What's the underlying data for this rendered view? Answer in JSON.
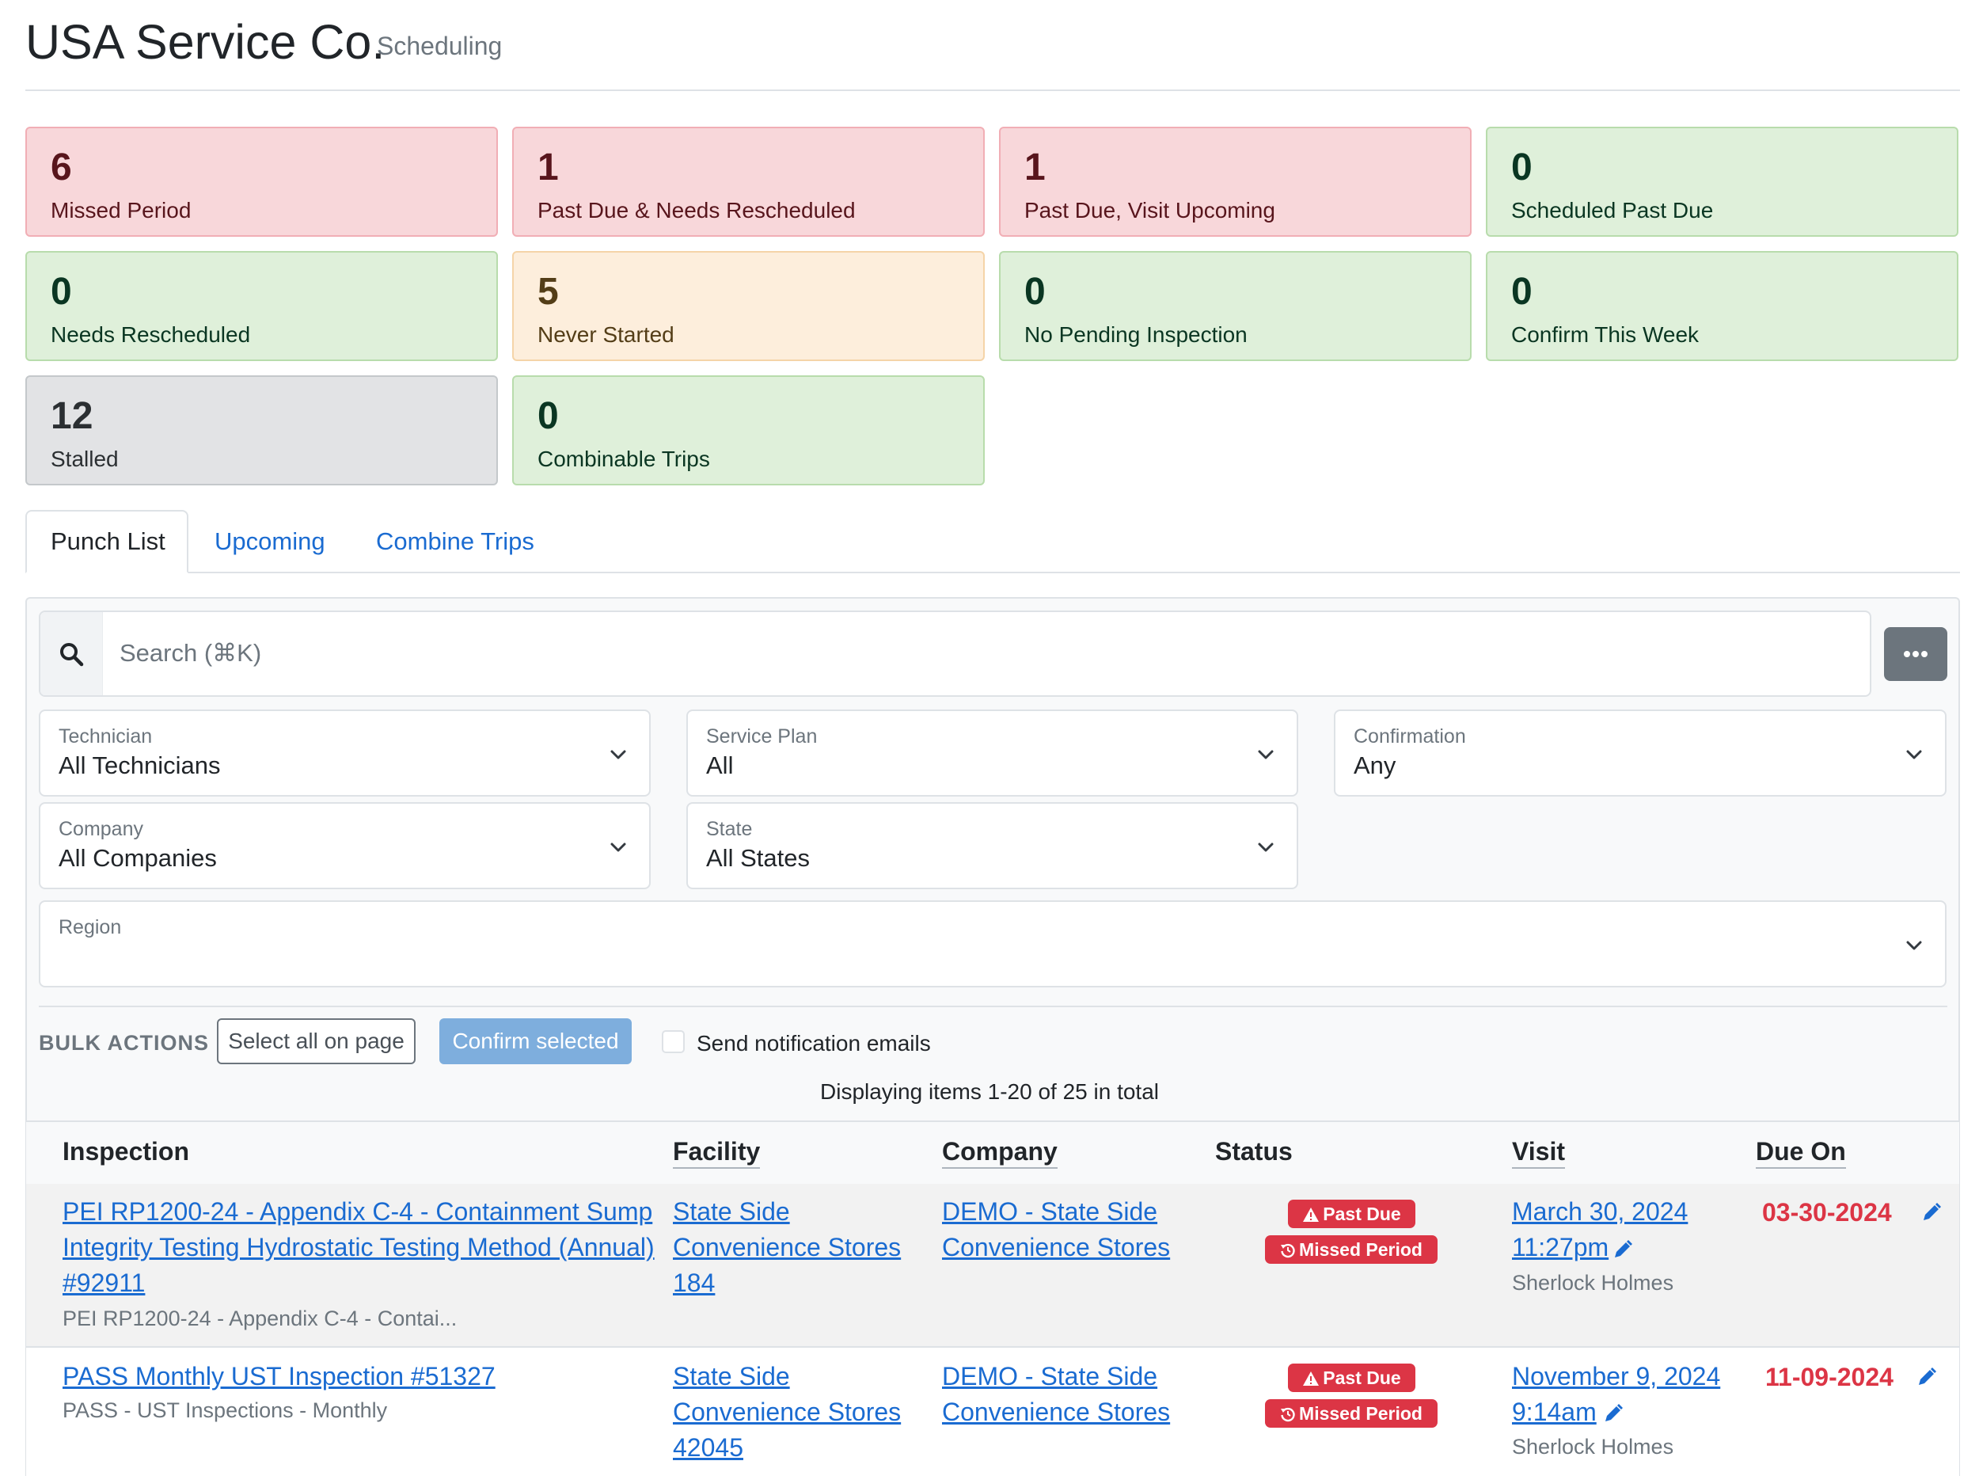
{
  "header": {
    "title": "USA Service Co.",
    "subtitle": "Scheduling"
  },
  "stats": [
    {
      "value": "6",
      "label": "Missed Period",
      "tone": "red"
    },
    {
      "value": "1",
      "label": "Past Due & Needs Rescheduled",
      "tone": "red"
    },
    {
      "value": "1",
      "label": "Past Due, Visit Upcoming",
      "tone": "red"
    },
    {
      "value": "0",
      "label": "Scheduled Past Due",
      "tone": "green"
    },
    {
      "value": "0",
      "label": "Needs Rescheduled",
      "tone": "green"
    },
    {
      "value": "5",
      "label": "Never Started",
      "tone": "orange"
    },
    {
      "value": "0",
      "label": "No Pending Inspection",
      "tone": "green"
    },
    {
      "value": "0",
      "label": "Confirm This Week",
      "tone": "green"
    },
    {
      "value": "12",
      "label": "Stalled",
      "tone": "gray"
    },
    {
      "value": "0",
      "label": "Combinable Trips",
      "tone": "green"
    }
  ],
  "tabs": [
    {
      "label": "Punch List",
      "active": true
    },
    {
      "label": "Upcoming",
      "active": false
    },
    {
      "label": "Combine Trips",
      "active": false
    }
  ],
  "search": {
    "placeholder": "Search (⌘K)",
    "icon": "search-icon",
    "more_icon": "ellipsis-icon"
  },
  "filters": {
    "technician": {
      "label": "Technician",
      "value": "All Technicians"
    },
    "service_plan": {
      "label": "Service Plan",
      "value": "All"
    },
    "confirmation": {
      "label": "Confirmation",
      "value": "Any"
    },
    "company": {
      "label": "Company",
      "value": "All Companies"
    },
    "state": {
      "label": "State",
      "value": "All States"
    },
    "region": {
      "label": "Region",
      "value": ""
    }
  },
  "bulk": {
    "label": "BULK ACTIONS",
    "select_all": "Select all on page",
    "confirm_selected": "Confirm selected",
    "notify_label": "Send notification emails",
    "notify_checked": false
  },
  "pagination": {
    "summary": "Displaying items 1-20 of 25 in total"
  },
  "table": {
    "columns": [
      "Inspection",
      "Facility",
      "Company",
      "Status",
      "Visit",
      "Due On"
    ],
    "rows": [
      {
        "inspection_lines": [
          "PEI RP1200-24 - Appendix C-4 - Containment Sump",
          "Integrity Testing Hydrostatic Testing Method (Annual)",
          "#92911"
        ],
        "inspection_sub": "PEI RP1200-24 - Appendix C-4 - Contai...",
        "facility_lines": [
          "State Side",
          "Convenience Stores",
          "184"
        ],
        "company_lines": [
          "DEMO - State Side",
          "Convenience Stores"
        ],
        "badges": [
          "Past Due",
          "Missed Period"
        ],
        "visit_date": "March 30, 2024",
        "visit_time": "11:27pm",
        "technician": "Sherlock Holmes",
        "due_on": "03-30-2024"
      },
      {
        "inspection_lines": [
          "PASS Monthly UST Inspection #51327"
        ],
        "inspection_sub": "PASS - UST Inspections - Monthly",
        "facility_lines": [
          "State Side",
          "Convenience Stores",
          "42045"
        ],
        "company_lines": [
          "DEMO - State Side",
          "Convenience Stores"
        ],
        "badges": [
          "Past Due",
          "Missed Period"
        ],
        "visit_date": "November 9, 2024",
        "visit_time": "9:14am",
        "technician": "Sherlock Holmes",
        "due_on": "11-09-2024"
      }
    ]
  },
  "colors": {
    "link": "#1a6bd1",
    "danger": "#dc3545",
    "confirm_button": "#7eaedd"
  }
}
